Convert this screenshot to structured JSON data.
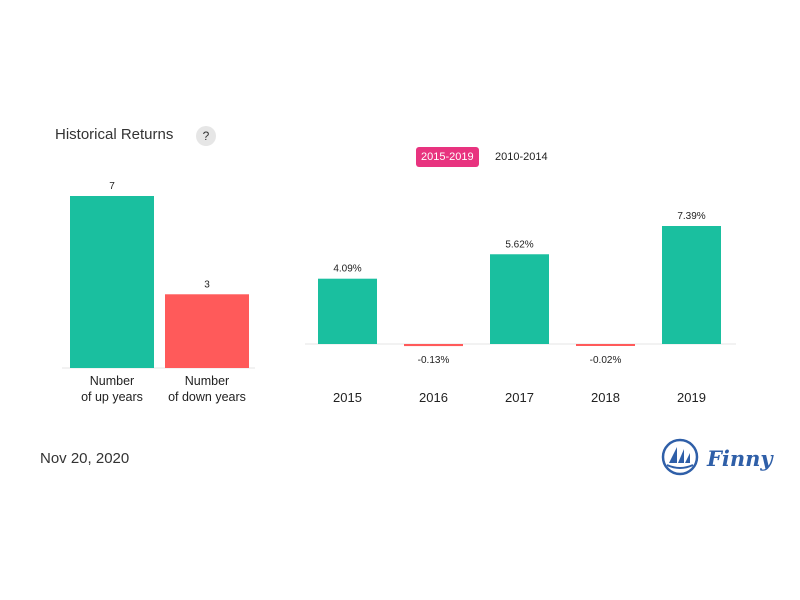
{
  "header": {
    "title": "Historical Returns",
    "help_label": "?"
  },
  "tabs": [
    {
      "label": "2015-2019",
      "active": true
    },
    {
      "label": "2010-2014",
      "active": false
    }
  ],
  "footer": {
    "date": "Nov 20, 2020",
    "brand": "Finny"
  },
  "colors": {
    "positive": "#1abf9f",
    "negative": "#ff5a5a",
    "active_tab": "#e8337f",
    "brand": "#2f5fa8"
  },
  "chart_data": [
    {
      "type": "bar",
      "categories": [
        [
          "Number",
          "of up years"
        ],
        [
          "Number",
          "of down years"
        ]
      ],
      "values": [
        7,
        3
      ],
      "data_labels": [
        "7",
        "3"
      ],
      "ylim": [
        0,
        7
      ]
    },
    {
      "type": "bar",
      "categories": [
        "2015",
        "2016",
        "2017",
        "2018",
        "2019"
      ],
      "values": [
        4.09,
        -0.13,
        5.62,
        -0.02,
        7.39
      ],
      "data_labels": [
        "4.09%",
        "-0.13%",
        "5.62%",
        "-0.02%",
        "7.39%"
      ],
      "ylim": [
        -0.13,
        7.39
      ]
    }
  ]
}
